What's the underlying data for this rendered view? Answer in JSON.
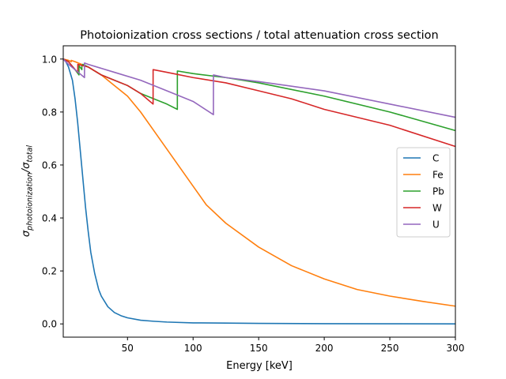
{
  "chart_data": {
    "type": "line",
    "title": "Photoionization cross sections / total attenuation cross section",
    "xlabel": "Energy [keV]",
    "ylabel_main": "σ",
    "ylabel_num_sub": "photoionization",
    "ylabel_sep": "/σ",
    "ylabel_den_sub": "total",
    "xlim": [
      1,
      300
    ],
    "ylim": [
      -0.05,
      1.05
    ],
    "xticks": [
      50,
      100,
      150,
      200,
      250,
      300
    ],
    "xtick_labels": [
      "50",
      "100",
      "150",
      "200",
      "250",
      "300"
    ],
    "yticks": [
      0.0,
      0.2,
      0.4,
      0.6,
      0.8,
      1.0
    ],
    "ytick_labels": [
      "0.0",
      "0.2",
      "0.4",
      "0.6",
      "0.8",
      "1.0"
    ],
    "legend_position": "center-right",
    "grid": false,
    "series": [
      {
        "name": "C",
        "color": "#1f77b4",
        "x": [
          1,
          3,
          5,
          8,
          10,
          12,
          15,
          18,
          20,
          22,
          25,
          28,
          30,
          35,
          40,
          45,
          50,
          60,
          70,
          80,
          100,
          125,
          150,
          200,
          250,
          300
        ],
        "y": [
          1.0,
          0.99,
          0.97,
          0.92,
          0.85,
          0.76,
          0.6,
          0.44,
          0.35,
          0.27,
          0.19,
          0.13,
          0.105,
          0.065,
          0.043,
          0.031,
          0.023,
          0.014,
          0.01,
          0.007,
          0.004,
          0.003,
          0.002,
          0.001,
          0.0005,
          0.0
        ]
      },
      {
        "name": "Fe",
        "color": "#ff7f0e",
        "x": [
          1,
          5,
          7.1,
          7.11,
          10,
          20,
          30,
          40,
          50,
          60,
          70,
          80,
          90,
          100,
          110,
          125,
          150,
          175,
          200,
          225,
          250,
          275,
          300
        ],
        "y": [
          1.0,
          0.995,
          0.99,
          0.995,
          0.99,
          0.97,
          0.94,
          0.9,
          0.86,
          0.8,
          0.73,
          0.66,
          0.59,
          0.52,
          0.45,
          0.38,
          0.29,
          0.22,
          0.17,
          0.13,
          0.105,
          0.085,
          0.067
        ]
      },
      {
        "name": "Pb",
        "color": "#2ca02c",
        "x": [
          1,
          5,
          10,
          13.0,
          13.01,
          15.2,
          15.21,
          16,
          20,
          30,
          40,
          50,
          60,
          70,
          80,
          88.0,
          88.01,
          100,
          125,
          150,
          200,
          250,
          300
        ],
        "y": [
          1.0,
          0.99,
          0.96,
          0.94,
          0.975,
          0.96,
          0.975,
          0.98,
          0.97,
          0.94,
          0.92,
          0.9,
          0.87,
          0.85,
          0.83,
          0.81,
          0.955,
          0.945,
          0.93,
          0.91,
          0.86,
          0.8,
          0.73
        ]
      },
      {
        "name": "W",
        "color": "#d62728",
        "x": [
          1,
          5,
          10,
          12.1,
          12.11,
          20,
          30,
          40,
          50,
          60,
          69.5,
          69.51,
          80,
          100,
          125,
          150,
          175,
          200,
          250,
          300
        ],
        "y": [
          1.0,
          0.99,
          0.96,
          0.95,
          0.98,
          0.97,
          0.94,
          0.92,
          0.9,
          0.87,
          0.83,
          0.96,
          0.95,
          0.93,
          0.91,
          0.88,
          0.85,
          0.81,
          0.75,
          0.67
        ]
      },
      {
        "name": "U",
        "color": "#9467bd",
        "x": [
          1,
          5,
          10,
          17.2,
          17.21,
          20,
          40,
          60,
          80,
          100,
          115.5,
          115.51,
          125,
          150,
          200,
          250,
          300
        ],
        "y": [
          1.0,
          0.98,
          0.96,
          0.93,
          0.985,
          0.98,
          0.95,
          0.92,
          0.88,
          0.84,
          0.79,
          0.94,
          0.93,
          0.915,
          0.88,
          0.83,
          0.78
        ]
      }
    ]
  }
}
